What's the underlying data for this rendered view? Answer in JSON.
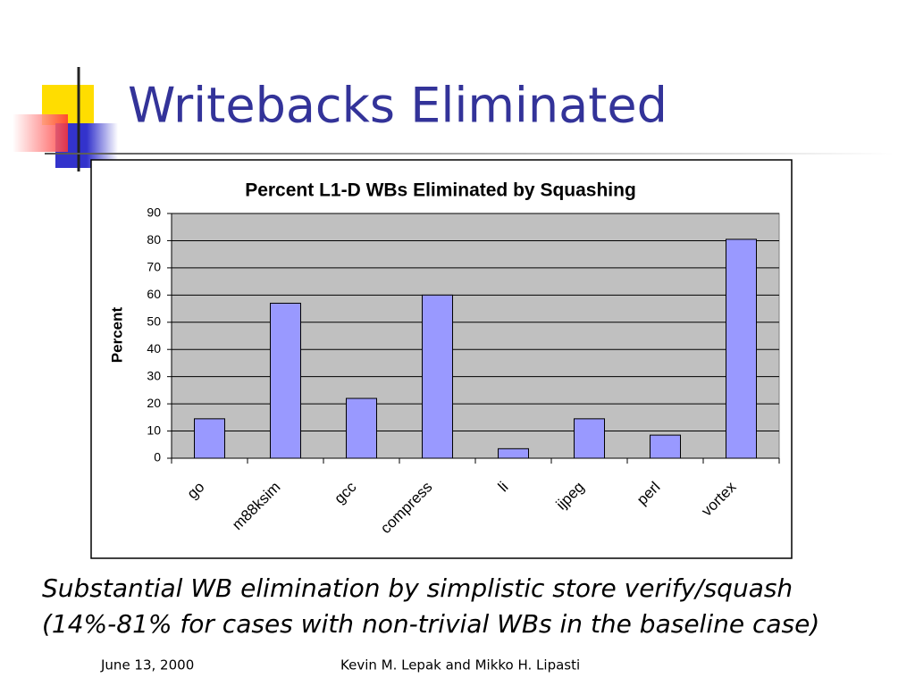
{
  "slide": {
    "title": "Writebacks Eliminated",
    "caption": [
      "Substantial WB elimination by simplistic store verify/squash",
      "(14%-81% for cases with non-trivial WBs in the baseline case)"
    ],
    "footer_date": "June 13, 2000",
    "footer_authors": "Kevin M. Lepak and Mikko H. Lipasti"
  },
  "chart_data": {
    "type": "bar",
    "title": "Percent L1-D WBs Eliminated by Squashing",
    "y_label": "Percent",
    "categories": [
      "go",
      "m88ksim",
      "gcc",
      "compress",
      "li",
      "ijpeg",
      "perl",
      "vortex"
    ],
    "values": [
      14.5,
      57,
      22,
      60,
      3.5,
      14.5,
      8.5,
      80.5
    ],
    "color": "#9999ff",
    "ylim": [
      0,
      90
    ],
    "yticks": [
      0,
      10,
      20,
      30,
      40,
      50,
      60,
      70,
      80,
      90
    ],
    "grid": true
  }
}
